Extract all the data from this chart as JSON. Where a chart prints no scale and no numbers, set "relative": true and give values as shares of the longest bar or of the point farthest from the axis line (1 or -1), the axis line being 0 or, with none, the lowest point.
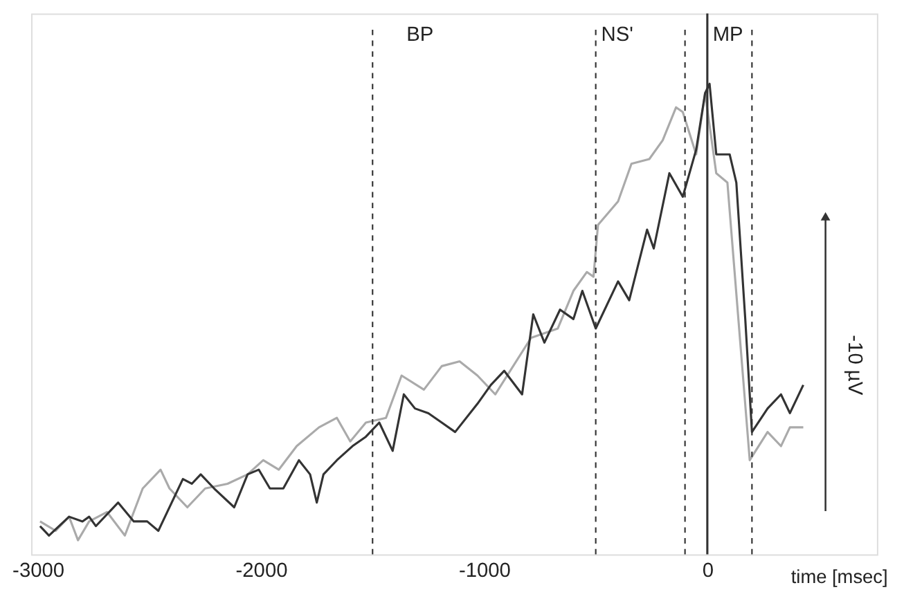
{
  "chart_data": {
    "type": "line",
    "relative": true,
    "xlabel": "time [msec]",
    "xlim": [
      -3030,
      760
    ],
    "xticks": [
      -3000,
      -2000,
      -1000,
      0
    ],
    "grid": false,
    "line_style": "solid",
    "marker": "none",
    "annotations": [
      "-10 µV"
    ],
    "ref_lines": [
      {
        "axis": "x",
        "value": -1500,
        "label": "BP",
        "line_style": "dashed",
        "color": "#333333"
      },
      {
        "axis": "x",
        "value": -500,
        "label": "NS'",
        "line_style": "dashed",
        "color": "#333333"
      },
      {
        "axis": "x",
        "value": -100,
        "line_style": "dashed",
        "color": "#333333"
      },
      {
        "axis": "x",
        "value": 0,
        "label": "MP",
        "line_style": "solid",
        "color": "#333333"
      },
      {
        "axis": "x",
        "value": 200,
        "line_style": "dashed",
        "color": "#333333"
      }
    ],
    "series": [
      {
        "color": "#aaaaaa",
        "x": [
          -2990,
          -2920,
          -2860,
          -2820,
          -2770,
          -2690,
          -2610,
          -2530,
          -2450,
          -2410,
          -2330,
          -2250,
          -2150,
          -2060,
          -1990,
          -1920,
          -1840,
          -1740,
          -1660,
          -1600,
          -1530,
          -1440,
          -1370,
          -1270,
          -1190,
          -1110,
          -1030,
          -950,
          -790,
          -670,
          -600,
          -540,
          -510,
          -490,
          -400,
          -340,
          -260,
          -200,
          -140,
          -110,
          -50,
          -10,
          40,
          90,
          190,
          270,
          330,
          370,
          430
        ],
        "values": [
          0.07,
          0.05,
          0.08,
          0.03,
          0.07,
          0.09,
          0.04,
          0.14,
          0.18,
          0.14,
          0.1,
          0.14,
          0.15,
          0.17,
          0.2,
          0.18,
          0.23,
          0.27,
          0.29,
          0.24,
          0.28,
          0.29,
          0.38,
          0.35,
          0.4,
          0.41,
          0.38,
          0.34,
          0.46,
          0.48,
          0.56,
          0.6,
          0.59,
          0.7,
          0.75,
          0.83,
          0.84,
          0.88,
          0.95,
          0.94,
          0.85,
          0.98,
          0.81,
          0.79,
          0.2,
          0.26,
          0.23,
          0.27,
          0.27
        ]
      },
      {
        "color": "#333333",
        "x": [
          -2990,
          -2950,
          -2860,
          -2800,
          -2770,
          -2740,
          -2640,
          -2570,
          -2510,
          -2460,
          -2400,
          -2350,
          -2310,
          -2270,
          -2210,
          -2120,
          -2060,
          -2010,
          -1960,
          -1900,
          -1830,
          -1780,
          -1750,
          -1720,
          -1660,
          -1590,
          -1530,
          -1470,
          -1410,
          -1360,
          -1310,
          -1250,
          -1190,
          -1130,
          -1030,
          -970,
          -910,
          -830,
          -780,
          -730,
          -660,
          -600,
          -560,
          -500,
          -400,
          -350,
          -270,
          -240,
          -170,
          -110,
          -50,
          -10,
          10,
          40,
          100,
          130,
          170,
          200,
          270,
          330,
          370,
          430
        ],
        "values": [
          0.06,
          0.04,
          0.08,
          0.07,
          0.08,
          0.06,
          0.11,
          0.07,
          0.07,
          0.05,
          0.11,
          0.16,
          0.15,
          0.17,
          0.14,
          0.1,
          0.17,
          0.18,
          0.14,
          0.14,
          0.2,
          0.17,
          0.11,
          0.17,
          0.2,
          0.23,
          0.25,
          0.28,
          0.22,
          0.34,
          0.31,
          0.3,
          0.28,
          0.26,
          0.32,
          0.36,
          0.39,
          0.34,
          0.51,
          0.45,
          0.52,
          0.5,
          0.56,
          0.48,
          0.58,
          0.54,
          0.69,
          0.65,
          0.81,
          0.76,
          0.86,
          0.98,
          1.0,
          0.85,
          0.85,
          0.79,
          0.5,
          0.26,
          0.31,
          0.34,
          0.3,
          0.36
        ]
      }
    ]
  }
}
